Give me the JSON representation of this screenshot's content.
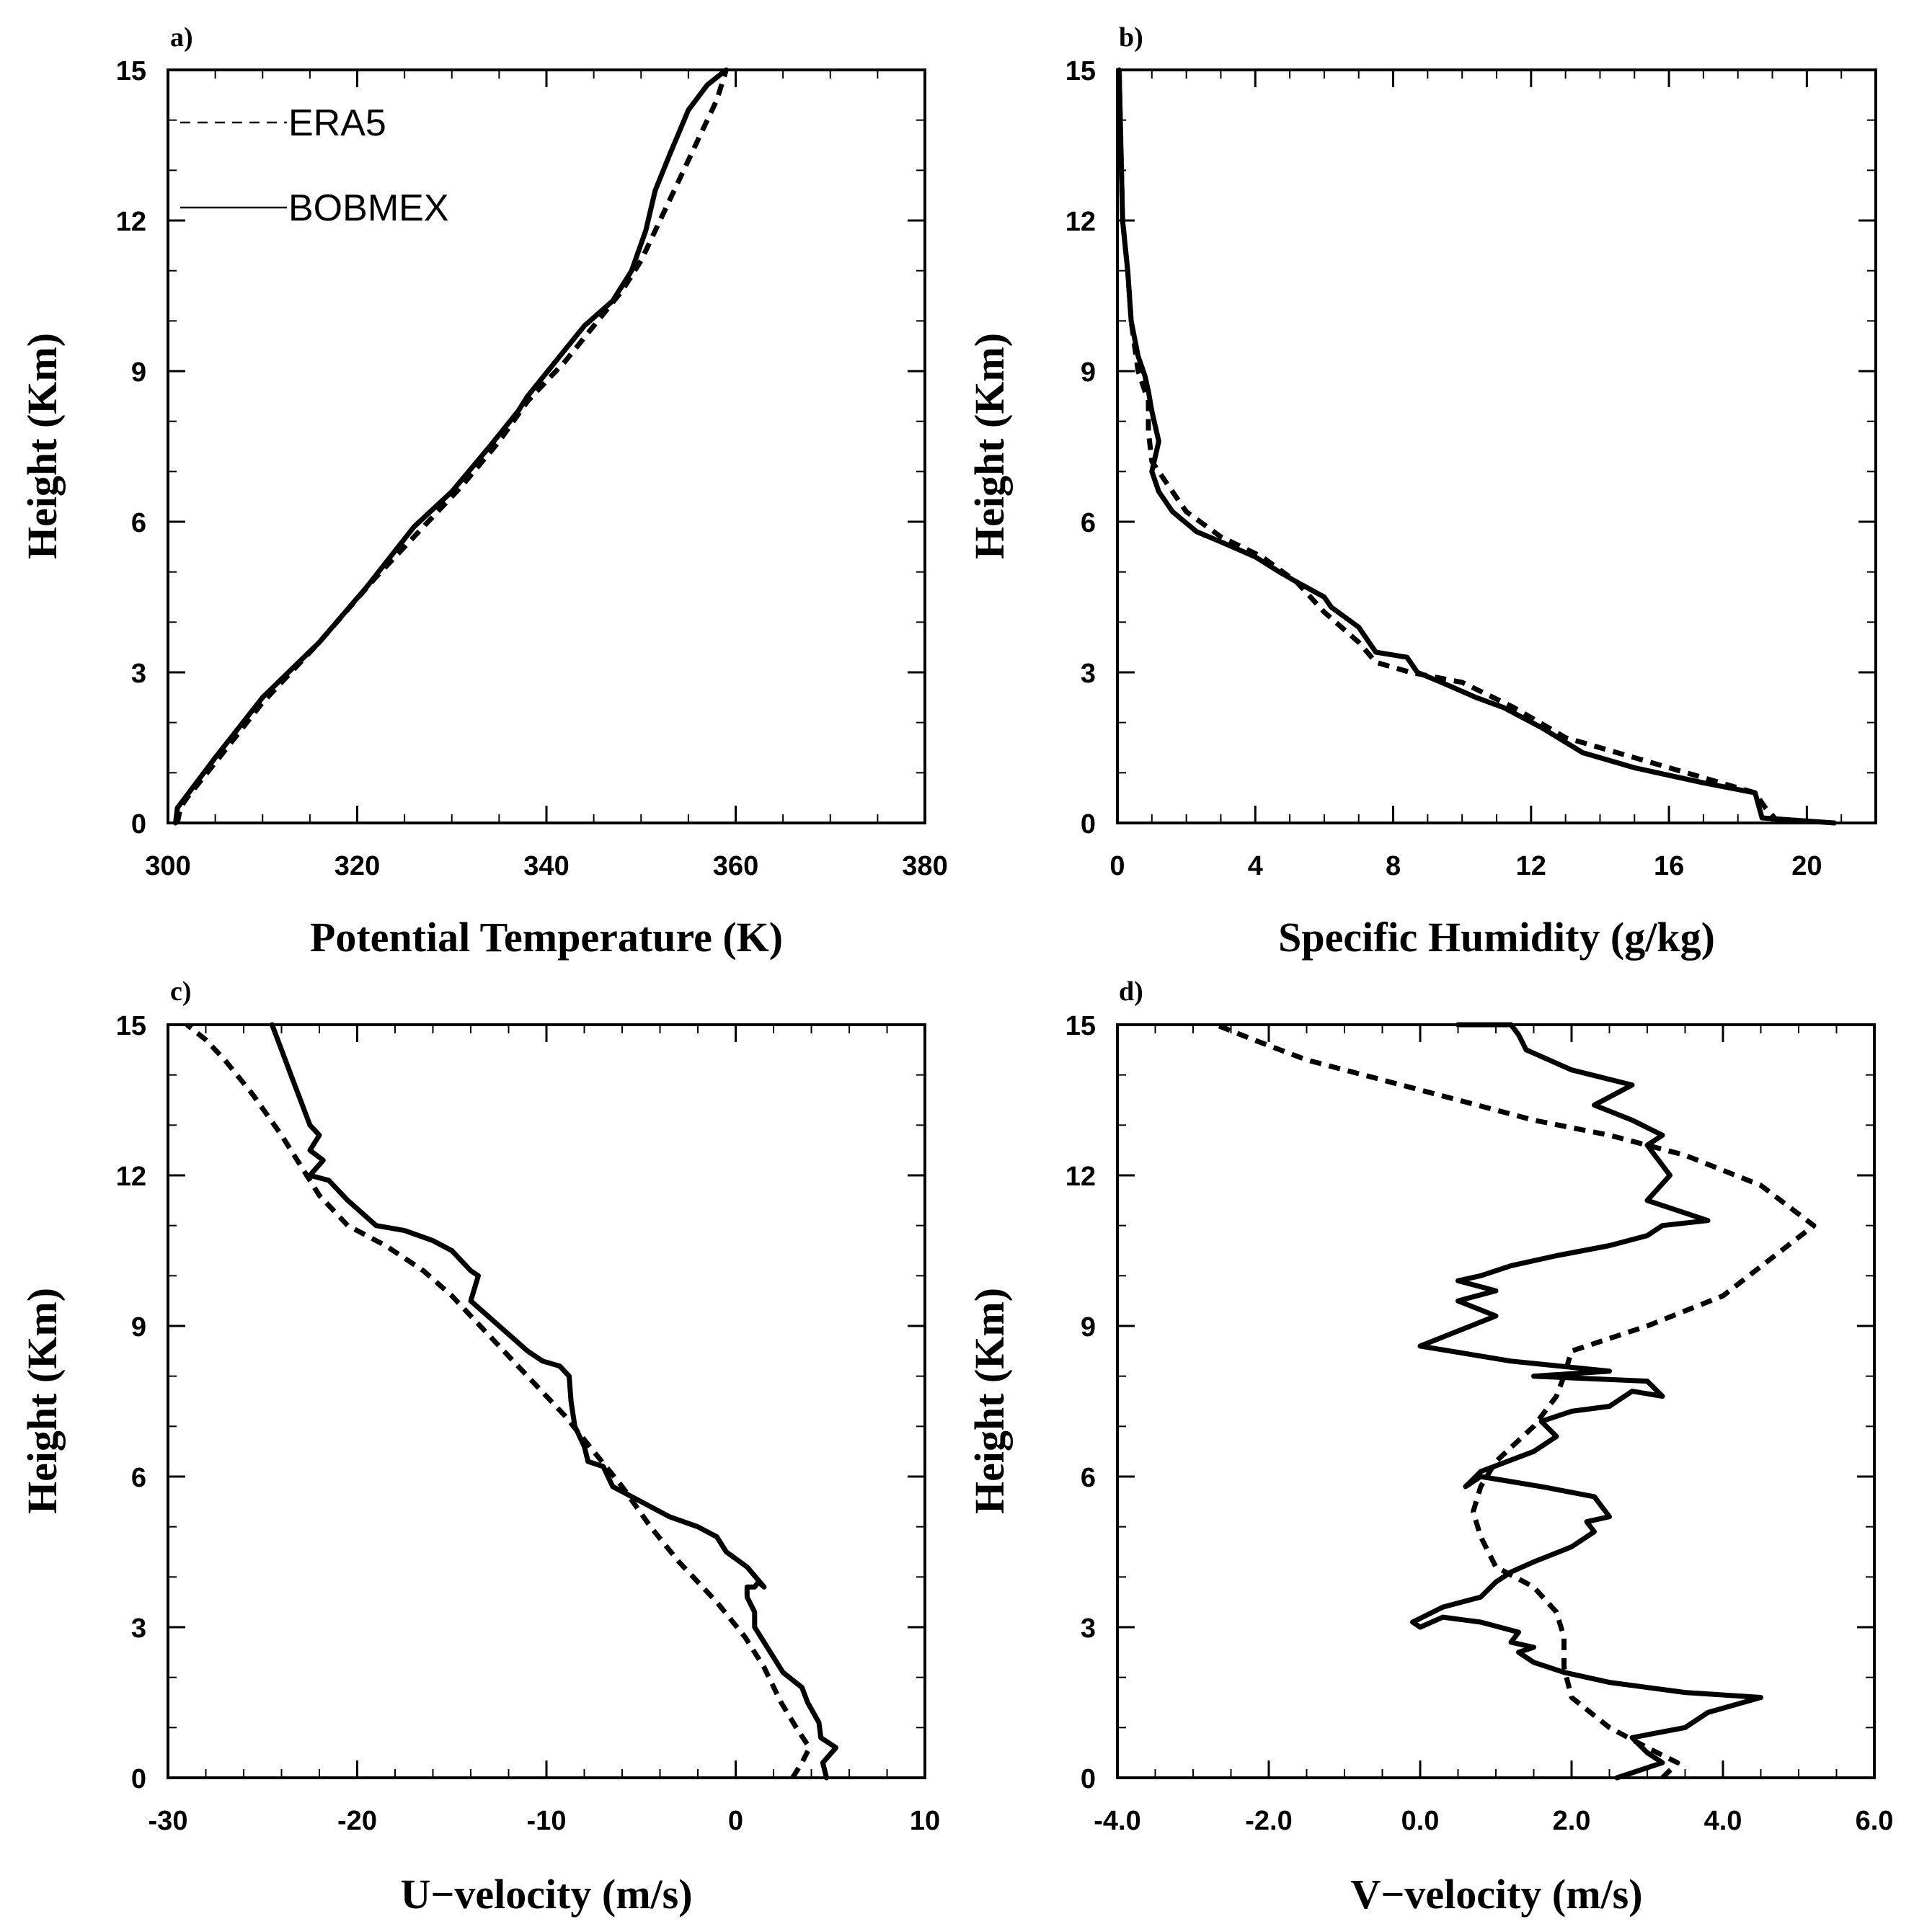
{
  "chart_data": [
    {
      "id": "a",
      "panel_label": "a)",
      "type": "line",
      "xlabel": "Potential Temperature (K)",
      "ylabel": "Height (Km)",
      "xlim": [
        300,
        380
      ],
      "ylim": [
        0,
        15
      ],
      "xticks": [
        "300",
        "320",
        "340",
        "360",
        "380"
      ],
      "xtick_values": [
        300,
        320,
        340,
        360,
        380
      ],
      "xminor_step": 5,
      "yticks": [
        "0",
        "3",
        "6",
        "9",
        "12",
        "15"
      ],
      "ytick_values": [
        0,
        3,
        6,
        9,
        12,
        15
      ],
      "yminor_step": 1,
      "legend": {
        "placement": "top-left",
        "entries": [
          {
            "name": "ERA5",
            "style": "dashed"
          },
          {
            "name": "BOBMEX",
            "style": "solid"
          }
        ]
      },
      "series": [
        {
          "name": "ERA5",
          "style": "dashed",
          "x": [
            301.0,
            301.3,
            302.0,
            305.0,
            310.0,
            316.0,
            322.0,
            327.0,
            331.0,
            335.0,
            338.0,
            342.0,
            345.0,
            348.0,
            350.0,
            352.0,
            354.0,
            356.0,
            358.0,
            359.0
          ],
          "y": [
            0.0,
            0.3,
            0.5,
            1.2,
            2.4,
            3.6,
            4.9,
            5.9,
            6.7,
            7.6,
            8.4,
            9.2,
            9.9,
            10.6,
            11.2,
            12.0,
            12.8,
            13.6,
            14.4,
            15.0
          ]
        },
        {
          "name": "BOBMEX",
          "style": "solid",
          "x": [
            300.8,
            301.0,
            301.8,
            305.0,
            310.0,
            316.0,
            321.0,
            326.0,
            330.0,
            334.0,
            337.0,
            338.0,
            341.0,
            344.0,
            347.0,
            349.0,
            350.5,
            351.5,
            353.0,
            355.0,
            357.0,
            359.0
          ],
          "y": [
            0.0,
            0.3,
            0.5,
            1.3,
            2.5,
            3.6,
            4.7,
            5.9,
            6.6,
            7.5,
            8.2,
            8.5,
            9.2,
            9.9,
            10.4,
            11.0,
            11.8,
            12.6,
            13.3,
            14.2,
            14.7,
            15.0
          ]
        }
      ]
    },
    {
      "id": "b",
      "panel_label": "b)",
      "type": "line",
      "xlabel": "Specific Humidity (g/kg)",
      "ylabel": "Height (Km)",
      "xlim": [
        0,
        22
      ],
      "ylim": [
        0,
        15
      ],
      "xticks": [
        "0",
        "4",
        "8",
        "12",
        "16",
        "20"
      ],
      "xtick_values": [
        0,
        4,
        8,
        12,
        16,
        20
      ],
      "xminor_step": 1,
      "yticks": [
        "0",
        "3",
        "6",
        "9",
        "12",
        "15"
      ],
      "ytick_values": [
        0,
        3,
        6,
        9,
        12,
        15
      ],
      "yminor_step": 1,
      "series": [
        {
          "name": "ERA5",
          "style": "dashed",
          "x": [
            19.2,
            18.8,
            18.5,
            16.5,
            14.5,
            13.0,
            11.5,
            10.0,
            8.5,
            7.5,
            7.0,
            6.0,
            5.2,
            4.2,
            3.0,
            2.0,
            1.4,
            1.0,
            0.9,
            0.9,
            0.6,
            0.4,
            0.3,
            0.15,
            0.05
          ],
          "y": [
            0.0,
            0.3,
            0.6,
            1.0,
            1.4,
            1.7,
            2.3,
            2.8,
            3.0,
            3.2,
            3.6,
            4.2,
            4.8,
            5.3,
            5.7,
            6.2,
            6.8,
            7.2,
            7.8,
            8.4,
            9.0,
            10.0,
            11.0,
            12.0,
            15.0
          ]
        },
        {
          "name": "BOBMEX",
          "style": "solid",
          "x": [
            20.8,
            18.7,
            18.5,
            17.0,
            15.0,
            13.5,
            12.3,
            11.2,
            10.4,
            9.4,
            8.7,
            8.4,
            7.5,
            7.0,
            6.2,
            6.0,
            5.2,
            4.7,
            4.0,
            3.0,
            2.3,
            1.6,
            1.2,
            1.0,
            1.2,
            1.0,
            0.9,
            0.8,
            0.6,
            0.4,
            0.3,
            0.15,
            0.05
          ],
          "y": [
            0.0,
            0.1,
            0.6,
            0.8,
            1.1,
            1.4,
            1.9,
            2.3,
            2.5,
            2.8,
            3.0,
            3.3,
            3.4,
            3.9,
            4.3,
            4.5,
            4.8,
            5.0,
            5.3,
            5.6,
            5.8,
            6.2,
            6.6,
            7.0,
            7.6,
            8.2,
            8.6,
            8.9,
            9.3,
            10.0,
            11.0,
            12.0,
            15.0
          ]
        }
      ]
    },
    {
      "id": "c",
      "panel_label": "c)",
      "type": "line",
      "xlabel": "U−velocity (m/s)",
      "ylabel": "Height (Km)",
      "xlim": [
        -30,
        10
      ],
      "ylim": [
        0,
        15
      ],
      "xticks": [
        "-30",
        "-20",
        "-10",
        "0",
        "10"
      ],
      "xtick_values": [
        -30,
        -20,
        -10,
        0,
        10
      ],
      "xminor_step": 2,
      "yticks": [
        "0",
        "3",
        "6",
        "9",
        "12",
        "15"
      ],
      "ytick_values": [
        0,
        3,
        6,
        9,
        12,
        15
      ],
      "yminor_step": 1,
      "series": [
        {
          "name": "ERA5",
          "style": "dashed",
          "x": [
            3.0,
            3.5,
            3.9,
            3.2,
            2.4,
            1.5,
            0.5,
            -1.0,
            -3.0,
            -4.5,
            -6.0,
            -7.5,
            -9.0,
            -11.0,
            -12.5,
            -14.0,
            -15.0,
            -16.5,
            -18.5,
            -20.5,
            -22.0,
            -23.0,
            -24.0,
            -25.5,
            -27.0,
            -28.0,
            -29.0
          ],
          "y": [
            0.0,
            0.3,
            0.6,
            1.0,
            1.5,
            2.2,
            2.8,
            3.5,
            4.3,
            5.0,
            5.8,
            6.5,
            7.2,
            8.0,
            8.6,
            9.2,
            9.6,
            10.1,
            10.6,
            11.0,
            11.6,
            12.2,
            12.8,
            13.6,
            14.3,
            14.7,
            15.0
          ]
        },
        {
          "name": "BOBMEX",
          "style": "solid",
          "x": [
            4.8,
            4.6,
            5.3,
            4.5,
            4.4,
            3.8,
            3.5,
            2.5,
            1.5,
            1.0,
            1.0,
            0.6,
            0.6,
            1.0,
            1.2,
            1.5,
            0.6,
            -0.5,
            -1.0,
            -2.0,
            -3.5,
            -5.0,
            -6.5,
            -7.0,
            -7.8,
            -8.0,
            -8.5,
            -8.7,
            -8.8,
            -9.3,
            -10.2,
            -11.0,
            -12.5,
            -14.0,
            -13.6,
            -14.0,
            -15.0,
            -16.0,
            -17.5,
            -19.0,
            -20.5,
            -21.5,
            -22.5,
            -21.8,
            -22.5,
            -22.0,
            -22.5,
            -23.0,
            -23.5,
            -24.0,
            -24.5
          ],
          "y": [
            0.0,
            0.3,
            0.6,
            0.8,
            1.1,
            1.5,
            1.8,
            2.1,
            2.7,
            3.0,
            3.3,
            3.6,
            3.8,
            3.8,
            3.9,
            3.8,
            4.2,
            4.5,
            4.8,
            5.0,
            5.2,
            5.5,
            5.8,
            6.2,
            6.3,
            6.6,
            7.0,
            7.5,
            8.0,
            8.2,
            8.3,
            8.5,
            9.0,
            9.5,
            10.0,
            10.1,
            10.5,
            10.7,
            10.9,
            11.0,
            11.5,
            11.9,
            12.0,
            12.3,
            12.5,
            12.8,
            13.0,
            13.5,
            14.0,
            14.5,
            15.0
          ]
        }
      ]
    },
    {
      "id": "d",
      "panel_label": "d)",
      "type": "line",
      "xlabel": "V−velocity (m/s)",
      "ylabel": "Height (Km)",
      "xlim": [
        -4,
        6
      ],
      "ylim": [
        0,
        15
      ],
      "xticks": [
        "-4.0",
        "-2.0",
        "0.0",
        "2.0",
        "4.0",
        "6.0"
      ],
      "xtick_values": [
        -4,
        -2,
        0,
        2,
        4,
        6
      ],
      "xminor_step": 0.5,
      "yticks": [
        "0",
        "3",
        "6",
        "9",
        "12",
        "15"
      ],
      "ytick_values": [
        0,
        3,
        6,
        9,
        12,
        15
      ],
      "yminor_step": 1,
      "series": [
        {
          "name": "ERA5",
          "style": "dashed",
          "x": [
            3.2,
            3.4,
            3.0,
            2.5,
            2.0,
            1.9,
            1.9,
            1.8,
            1.5,
            1.0,
            0.8,
            0.7,
            0.8,
            1.0,
            1.5,
            1.8,
            1.9,
            2.0,
            3.0,
            4.0,
            4.6,
            5.2,
            4.5,
            3.5,
            2.5,
            1.5,
            0.5,
            -0.5,
            -1.5,
            -2.2,
            -2.7
          ],
          "y": [
            0.0,
            0.3,
            0.6,
            1.0,
            1.6,
            2.2,
            2.8,
            3.3,
            3.8,
            4.2,
            4.8,
            5.3,
            5.8,
            6.3,
            7.0,
            7.6,
            8.0,
            8.5,
            9.0,
            9.6,
            10.3,
            11.0,
            11.8,
            12.4,
            12.8,
            13.1,
            13.5,
            13.9,
            14.3,
            14.7,
            15.0
          ]
        },
        {
          "name": "BOBMEX",
          "style": "solid",
          "x": [
            2.6,
            3.2,
            3.0,
            2.8,
            3.5,
            3.8,
            4.5,
            3.5,
            2.5,
            1.9,
            1.5,
            1.3,
            1.5,
            1.2,
            1.3,
            0.8,
            0.3,
            0.0,
            -0.1,
            0.3,
            0.8,
            1.0,
            1.2,
            1.5,
            2.0,
            2.3,
            2.2,
            2.5,
            2.3,
            1.6,
            0.8,
            0.6,
            0.8,
            1.5,
            1.8,
            1.6,
            2.0,
            2.5,
            2.8,
            3.2,
            3.0,
            1.5,
            2.5,
            1.2,
            0.0,
            0.5,
            1.0,
            0.5,
            1.0,
            0.5,
            0.8,
            1.2,
            1.8,
            2.5,
            3.0,
            3.2,
            3.8,
            3.0,
            3.3,
            3.0,
            3.2,
            2.8,
            2.3,
            2.8,
            2.0,
            1.4,
            1.3,
            1.2,
            0.5
          ],
          "y": [
            0.0,
            0.3,
            0.5,
            0.8,
            1.0,
            1.3,
            1.6,
            1.7,
            1.9,
            2.1,
            2.3,
            2.5,
            2.6,
            2.7,
            2.9,
            3.1,
            3.2,
            3.0,
            3.1,
            3.4,
            3.6,
            3.9,
            4.1,
            4.3,
            4.6,
            4.9,
            5.1,
            5.2,
            5.6,
            5.8,
            6.0,
            5.8,
            6.1,
            6.5,
            6.8,
            7.1,
            7.3,
            7.4,
            7.7,
            7.6,
            7.9,
            8.0,
            8.1,
            8.3,
            8.6,
            8.9,
            9.2,
            9.5,
            9.7,
            9.9,
            10.0,
            10.2,
            10.4,
            10.6,
            10.8,
            11.0,
            11.1,
            11.5,
            12.0,
            12.6,
            12.8,
            13.1,
            13.4,
            13.8,
            14.1,
            14.5,
            14.8,
            15.0,
            15.0
          ]
        }
      ]
    }
  ]
}
